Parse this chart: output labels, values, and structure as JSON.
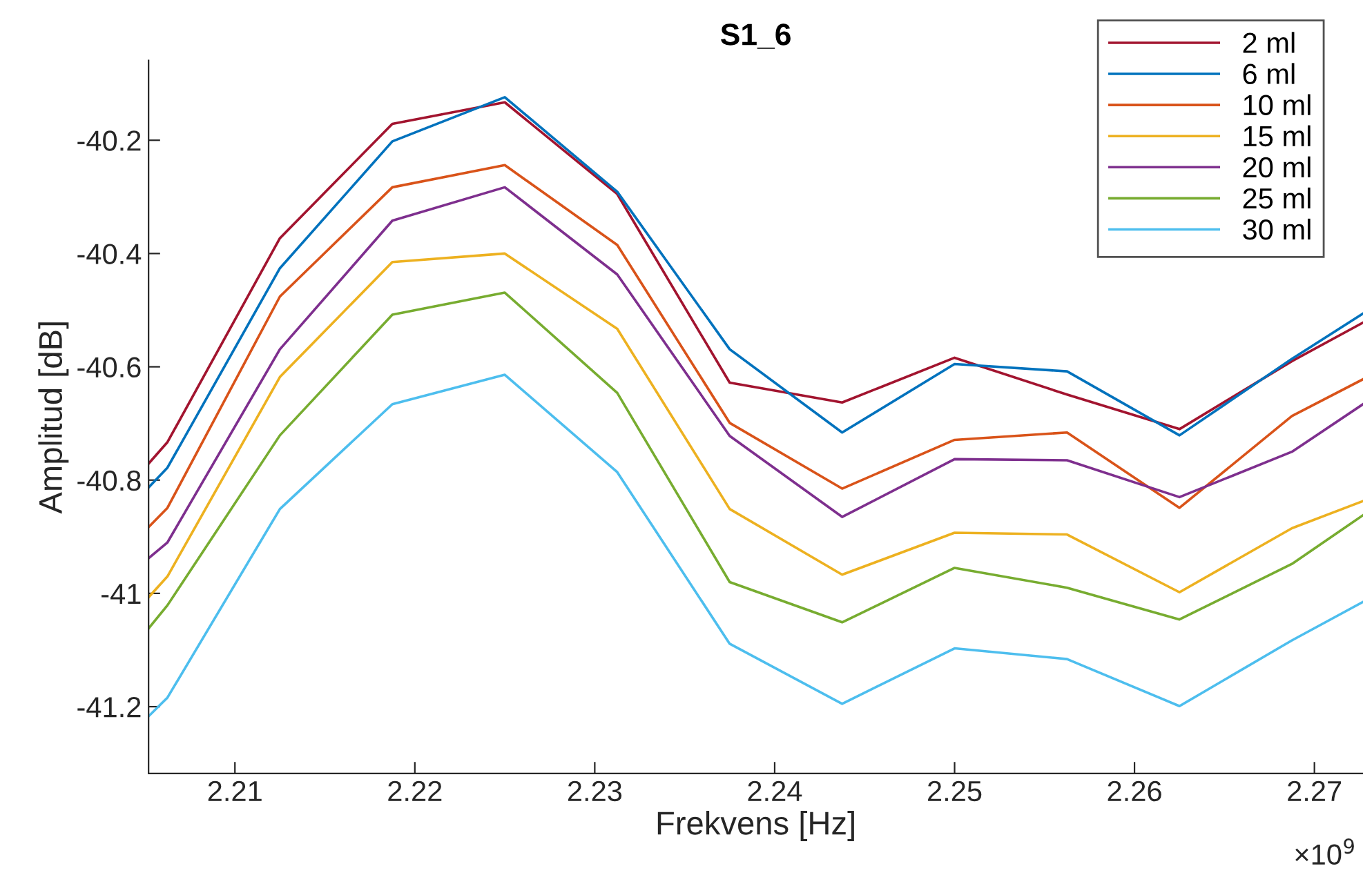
{
  "chart_data": {
    "type": "line",
    "title": "S1_6",
    "xlabel": "Frekvens [Hz]",
    "ylabel": "Amplitud [dB]",
    "x": [
      2.2052,
      2.20625,
      2.2125,
      2.21875,
      2.225,
      2.23125,
      2.2375,
      2.24375,
      2.25,
      2.25625,
      2.2625,
      2.26875,
      2.2727
    ],
    "series": [
      {
        "name": "2 ml",
        "color": "#a2142f",
        "values": [
          -40.771,
          -40.733,
          -40.373,
          -40.171,
          -40.133,
          -40.295,
          -40.628,
          -40.663,
          -40.584,
          -40.649,
          -40.71,
          -40.59,
          -40.522
        ]
      },
      {
        "name": "6 ml",
        "color": "#0072bd",
        "values": [
          -40.813,
          -40.778,
          -40.426,
          -40.202,
          -40.124,
          -40.291,
          -40.569,
          -40.716,
          -40.595,
          -40.608,
          -40.721,
          -40.586,
          -40.506
        ]
      },
      {
        "name": "10 ml",
        "color": "#d95319",
        "values": [
          -40.883,
          -40.849,
          -40.476,
          -40.283,
          -40.244,
          -40.385,
          -40.699,
          -40.815,
          -40.729,
          -40.716,
          -40.849,
          -40.687,
          -40.622
        ]
      },
      {
        "name": "15 ml",
        "color": "#edb120",
        "values": [
          -41.007,
          -40.97,
          -40.618,
          -40.415,
          -40.4,
          -40.533,
          -40.851,
          -40.967,
          -40.893,
          -40.896,
          -40.998,
          -40.885,
          -40.837
        ]
      },
      {
        "name": "20 ml",
        "color": "#7e2f8e",
        "values": [
          -40.938,
          -40.91,
          -40.569,
          -40.342,
          -40.283,
          -40.437,
          -40.722,
          -40.865,
          -40.763,
          -40.765,
          -40.83,
          -40.75,
          -40.666
        ]
      },
      {
        "name": "25 ml",
        "color": "#77ac30",
        "values": [
          -41.062,
          -41.021,
          -40.721,
          -40.508,
          -40.469,
          -40.646,
          -40.98,
          -41.051,
          -40.955,
          -40.99,
          -41.046,
          -40.948,
          -40.862
        ]
      },
      {
        "name": "30 ml",
        "color": "#4dbeee",
        "values": [
          -41.217,
          -41.184,
          -40.851,
          -40.666,
          -40.614,
          -40.786,
          -41.089,
          -41.195,
          -41.097,
          -41.116,
          -41.199,
          -41.083,
          -41.015
        ]
      }
    ],
    "xlim": [
      2.2052,
      2.2727
    ],
    "xticks": [
      2.21,
      2.22,
      2.23,
      2.24,
      2.25,
      2.26,
      2.27
    ],
    "ylim": [
      -41.318,
      -40.059
    ],
    "yticks": [
      -41.2,
      -41,
      -40.8,
      -40.6,
      -40.4,
      -40.2
    ],
    "annotations": [
      "×10$^{9}$"
    ],
    "grid": false,
    "legend": "top right",
    "line_style": "solid",
    "marker": "none"
  }
}
